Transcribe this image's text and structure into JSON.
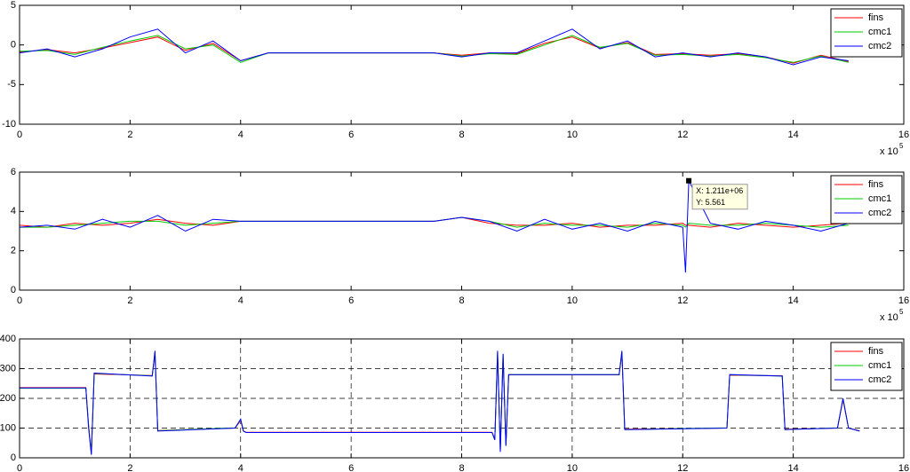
{
  "chart_data": [
    {
      "type": "line",
      "xlim": [
        0,
        16
      ],
      "xticks": [
        0,
        2,
        4,
        6,
        8,
        10,
        12,
        14,
        16
      ],
      "ylim": [
        -10,
        5
      ],
      "yticks": [
        -10,
        -5,
        0,
        5
      ],
      "grid": false,
      "legend": "upper right",
      "x_scale_label": {
        "base": "x 10",
        "exponent": "5"
      },
      "x": [
        0,
        0.5,
        1,
        1.5,
        2,
        2.5,
        3,
        3.5,
        4,
        4.5,
        5,
        5.5,
        6,
        6.5,
        7,
        7.5,
        8,
        8.5,
        9,
        9.5,
        10,
        10.5,
        11,
        11.5,
        12,
        12.5,
        13,
        13.5,
        14,
        14.5,
        15
      ],
      "series": [
        {
          "name": "fins",
          "color": "#ff0000",
          "values": [
            -0.9,
            -0.6,
            -1,
            -0.4,
            0.3,
            1,
            -0.7,
            0.2,
            -2,
            -1,
            -1,
            -1,
            -1,
            -1,
            -1,
            -1,
            -1.3,
            -1,
            -1.1,
            0.2,
            1,
            -0.4,
            0.3,
            -1.2,
            -1.1,
            -1.3,
            -1.1,
            -1.5,
            -2.3,
            -1.3,
            -2.1
          ]
        },
        {
          "name": "cmc1",
          "color": "#00cc00",
          "values": [
            -0.8,
            -0.7,
            -1.2,
            -0.3,
            0.5,
            1.2,
            -0.5,
            0,
            -2.2,
            -1,
            -1,
            -1,
            -1,
            -1,
            -1,
            -1,
            -1.4,
            -1.1,
            -1.2,
            0,
            1.2,
            -0.3,
            0.2,
            -1.3,
            -1.2,
            -1.4,
            -1.2,
            -1.6,
            -2.2,
            -1.4,
            -2.2
          ]
        },
        {
          "name": "cmc2",
          "color": "#0000ff",
          "values": [
            -1,
            -0.5,
            -1.5,
            -0.5,
            1,
            2,
            -1,
            0.5,
            -2,
            -1,
            -1,
            -1,
            -1,
            -1,
            -1,
            -1,
            -1.5,
            -1,
            -1,
            0.5,
            2,
            -0.5,
            0.5,
            -1.5,
            -1,
            -1.5,
            -1,
            -1.5,
            -2.5,
            -1.5,
            -2
          ]
        }
      ]
    },
    {
      "type": "line",
      "xlim": [
        0,
        16
      ],
      "xticks": [
        0,
        2,
        4,
        6,
        8,
        10,
        12,
        14,
        16
      ],
      "ylim": [
        0,
        6
      ],
      "yticks": [
        0,
        2,
        4,
        6
      ],
      "grid": false,
      "legend": "upper right",
      "x_scale_label": {
        "base": "x 10",
        "exponent": "5"
      },
      "datatip": {
        "x": 12.11,
        "y": 5.561,
        "x_label": "X: 1.211e+06",
        "y_label": "Y: 5.561"
      },
      "x": [
        0,
        0.5,
        1,
        1.5,
        2,
        2.5,
        3,
        3.5,
        4,
        4.5,
        5,
        5.5,
        6,
        6.5,
        7,
        7.5,
        8,
        8.5,
        9,
        9.5,
        10,
        10.5,
        11,
        11.5,
        12,
        12.05,
        12.11,
        12.5,
        13,
        13.5,
        14,
        14.5,
        15
      ],
      "series": [
        {
          "name": "fins",
          "color": "#ff0000",
          "values": [
            3.3,
            3.2,
            3.4,
            3.3,
            3.4,
            3.6,
            3.4,
            3.3,
            3.5,
            3.5,
            3.5,
            3.5,
            3.5,
            3.5,
            3.5,
            3.5,
            3.7,
            3.4,
            3.3,
            3.3,
            3.4,
            3.2,
            3.3,
            3.3,
            3.4,
            3.3,
            3.3,
            3.2,
            3.4,
            3.3,
            3.2,
            3.3,
            3.4
          ]
        },
        {
          "name": "cmc1",
          "color": "#00cc00",
          "values": [
            3.2,
            3.2,
            3.3,
            3.4,
            3.5,
            3.5,
            3.3,
            3.4,
            3.5,
            3.5,
            3.5,
            3.5,
            3.5,
            3.5,
            3.5,
            3.5,
            3.7,
            3.5,
            3.2,
            3.4,
            3.3,
            3.3,
            3.2,
            3.4,
            3.3,
            3.2,
            3.4,
            3.3,
            3.3,
            3.4,
            3.3,
            3.2,
            3.3
          ]
        },
        {
          "name": "cmc2",
          "color": "#0000ff",
          "values": [
            3.2,
            3.3,
            3.1,
            3.6,
            3.2,
            3.8,
            3.0,
            3.6,
            3.5,
            3.5,
            3.5,
            3.5,
            3.5,
            3.5,
            3.5,
            3.5,
            3.7,
            3.5,
            3.0,
            3.6,
            3.1,
            3.4,
            3.0,
            3.5,
            3.2,
            0.9,
            5.561,
            3.4,
            3.1,
            3.5,
            3.3,
            3.0,
            3.4
          ]
        }
      ]
    },
    {
      "type": "line",
      "xlim": [
        0,
        16
      ],
      "xticks": [
        0,
        2,
        4,
        6,
        8,
        10,
        12,
        14,
        16
      ],
      "ylim": [
        0,
        400
      ],
      "yticks": [
        0,
        100,
        200,
        300,
        400
      ],
      "grid": true,
      "legend": "upper right",
      "x": [
        0,
        1.2,
        1.25,
        1.3,
        1.35,
        2.4,
        2.45,
        2.5,
        3.9,
        4.0,
        4.05,
        4.1,
        8.55,
        8.6,
        8.65,
        8.7,
        8.75,
        8.8,
        8.85,
        10.85,
        10.9,
        10.95,
        12.8,
        12.85,
        13.8,
        13.85,
        14.8,
        14.9,
        15.0,
        15.2
      ],
      "series": [
        {
          "name": "fins",
          "color": "#ff0000",
          "values": [
            236,
            236,
            110,
            15,
            282,
            277,
            350,
            92,
            100,
            125,
            90,
            86,
            86,
            65,
            350,
            25,
            345,
            45,
            279,
            279,
            350,
            96,
            100,
            278,
            276,
            96,
            100,
            195,
            100,
            91
          ]
        },
        {
          "name": "cmc1",
          "color": "#00cc00",
          "values": [
            234,
            234,
            105,
            12,
            284,
            276,
            355,
            91,
            101,
            128,
            90,
            85,
            85,
            62,
            355,
            22,
            348,
            42,
            280,
            280,
            355,
            95,
            101,
            279,
            275,
            95,
            101,
            198,
            100,
            90
          ]
        },
        {
          "name": "cmc2",
          "color": "#0000ff",
          "values": [
            235,
            235,
            100,
            10,
            285,
            275,
            360,
            90,
            100,
            130,
            90,
            85,
            85,
            60,
            360,
            20,
            350,
            40,
            280,
            280,
            360,
            95,
            100,
            280,
            275,
            95,
            100,
            200,
            100,
            90
          ]
        }
      ]
    }
  ]
}
